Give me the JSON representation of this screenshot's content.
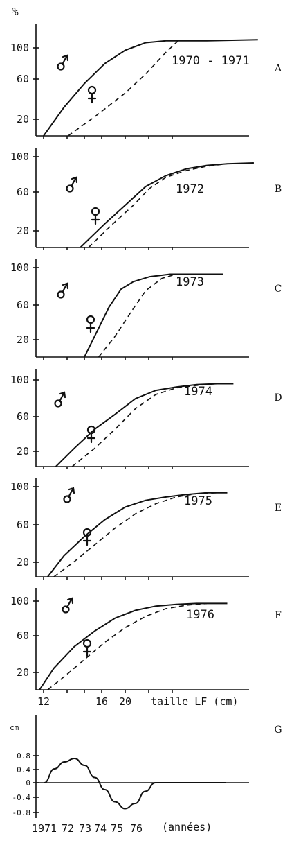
{
  "chart_data": [
    {
      "type": "line",
      "panel_label": "A",
      "year_label": "1970 - 1971",
      "ylabel": "%",
      "yticks": [
        "20",
        "60",
        "100"
      ],
      "xticks": [],
      "xlabel": "",
      "xlim": [
        11.5,
        25
      ],
      "ylim": [
        0,
        118
      ],
      "series": [
        {
          "symbol": "male",
          "style": "solid",
          "x": [
            12.0,
            13.0,
            14.0,
            15.0,
            16.0,
            17.0,
            18.0,
            19.0,
            20.0,
            22.5
          ],
          "y": [
            0,
            30,
            55,
            76,
            90,
            98,
            100,
            100,
            100,
            101
          ]
        },
        {
          "symbol": "female",
          "style": "dashed",
          "x": [
            13.2,
            14.5,
            16.0,
            17.0,
            18.0,
            18.6
          ],
          "y": [
            0,
            20,
            45,
            65,
            88,
            100
          ]
        }
      ]
    },
    {
      "type": "line",
      "panel_label": "B",
      "year_label": "1972",
      "ylabel": "",
      "yticks": [
        "20",
        "60",
        "100"
      ],
      "xticks": [],
      "xlabel": "",
      "xlim": [
        11.5,
        25
      ],
      "ylim": [
        0,
        118
      ],
      "series": [
        {
          "symbol": "male",
          "style": "solid",
          "x": [
            13.8,
            15.0,
            16.0,
            17.0,
            18.0,
            19.0,
            20.0,
            21.0,
            22.3
          ],
          "y": [
            0,
            28,
            50,
            72,
            85,
            93,
            97,
            99,
            100
          ]
        },
        {
          "symbol": "female",
          "style": "dashed",
          "x": [
            14.2,
            15.4,
            16.4,
            17.2,
            18.0,
            19.0,
            20.0,
            21.0
          ],
          "y": [
            0,
            28,
            50,
            70,
            83,
            91,
            96,
            99
          ]
        }
      ]
    },
    {
      "type": "line",
      "panel_label": "C",
      "year_label": "1973",
      "ylabel": "",
      "yticks": [
        "20",
        "60",
        "100"
      ],
      "xticks": [],
      "xlabel": "",
      "xlim": [
        11.5,
        25
      ],
      "ylim": [
        0,
        118
      ],
      "series": [
        {
          "symbol": "male",
          "style": "solid",
          "x": [
            14.0,
            14.6,
            15.2,
            15.8,
            16.4,
            17.2,
            18.2,
            19.5,
            20.8
          ],
          "y": [
            0,
            30,
            60,
            82,
            91,
            97,
            100,
            100,
            100
          ]
        },
        {
          "symbol": "female",
          "style": "dashed",
          "x": [
            14.7,
            15.5,
            16.3,
            17.0,
            17.8,
            18.5
          ],
          "y": [
            0,
            25,
            55,
            80,
            95,
            100
          ]
        }
      ]
    },
    {
      "type": "line",
      "panel_label": "D",
      "year_label": "1974",
      "ylabel": "",
      "yticks": [
        "20",
        "60",
        "100"
      ],
      "xticks": [],
      "xlabel": "",
      "xlim": [
        11.5,
        25
      ],
      "ylim": [
        0,
        118
      ],
      "series": [
        {
          "symbol": "male",
          "style": "solid",
          "x": [
            12.6,
            13.5,
            14.5,
            15.5,
            16.5,
            17.5,
            18.5,
            19.5,
            20.5,
            21.3
          ],
          "y": [
            0,
            22,
            45,
            63,
            82,
            92,
            96,
            99,
            100,
            100
          ]
        },
        {
          "symbol": "female",
          "style": "dashed",
          "x": [
            13.4,
            14.5,
            15.5,
            16.5,
            17.5,
            18.5,
            19.5,
            20.5
          ],
          "y": [
            0,
            22,
            45,
            70,
            87,
            95,
            98,
            100
          ]
        }
      ]
    },
    {
      "type": "line",
      "panel_label": "E",
      "year_label": "1975",
      "ylabel": "",
      "yticks": [
        "20",
        "60",
        "100"
      ],
      "xticks": [],
      "xlabel": "",
      "xlim": [
        11.5,
        25
      ],
      "ylim": [
        0,
        118
      ],
      "series": [
        {
          "symbol": "male",
          "style": "solid",
          "x": [
            12.2,
            13.0,
            14.0,
            15.0,
            16.0,
            17.0,
            18.0,
            19.0,
            20.0,
            21.0
          ],
          "y": [
            0,
            25,
            48,
            68,
            83,
            91,
            95,
            98,
            100,
            100
          ]
        },
        {
          "symbol": "female",
          "style": "dashed",
          "x": [
            12.5,
            13.5,
            14.5,
            15.5,
            16.5,
            17.5,
            18.5,
            19.5,
            20.5
          ],
          "y": [
            0,
            18,
            38,
            58,
            75,
            87,
            95,
            99,
            100
          ]
        }
      ]
    },
    {
      "type": "line",
      "panel_label": "F",
      "year_label": "1976",
      "ylabel": "",
      "yticks": [
        "20",
        "60",
        "100"
      ],
      "xticks": [
        "12",
        "16",
        "20"
      ],
      "xlabel": "taille LF (cm)",
      "xlim": [
        11.5,
        25
      ],
      "ylim": [
        0,
        118
      ],
      "series": [
        {
          "symbol": "male",
          "style": "solid",
          "x": [
            11.8,
            12.5,
            13.5,
            14.5,
            15.5,
            16.5,
            17.5,
            18.5,
            19.5,
            21.0
          ],
          "y": [
            0,
            25,
            50,
            68,
            83,
            92,
            97,
            99,
            100,
            100
          ]
        },
        {
          "symbol": "female",
          "style": "dashed",
          "x": [
            12.2,
            13.0,
            14.0,
            15.0,
            16.0,
            17.0,
            18.0,
            19.0,
            20.0
          ],
          "y": [
            0,
            15,
            35,
            55,
            72,
            85,
            94,
            98,
            100
          ]
        }
      ]
    },
    {
      "type": "line",
      "panel_label": "G",
      "ylabel": "cm",
      "yticks": [
        "0.8",
        "0.4",
        "0",
        "-0.4",
        "-0.8"
      ],
      "xticks": [
        "1971",
        "72",
        "73",
        "74",
        "75",
        "76"
      ],
      "xlabel": "(années)",
      "xlim": [
        1970.8,
        1980.2
      ],
      "ylim": [
        -1.0,
        1.3
      ],
      "series": [
        {
          "style": "solid",
          "x": [
            1971.0,
            1971.5,
            1972.0,
            1972.5,
            1973.0,
            1973.5,
            1974.0,
            1974.5,
            1975.0,
            1975.5,
            1976.0,
            1976.5,
            1980.0
          ],
          "y": [
            0,
            0.4,
            0.6,
            0.7,
            0.5,
            0.15,
            -0.2,
            -0.55,
            -0.75,
            -0.6,
            -0.25,
            0,
            0
          ]
        }
      ]
    }
  ]
}
